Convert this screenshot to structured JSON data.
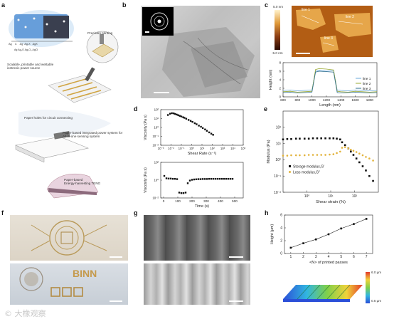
{
  "panel_labels": {
    "a": "a",
    "b": "b",
    "c": "c",
    "d": "d",
    "e": "e",
    "f": "f",
    "g": "g",
    "h": "h"
  },
  "panel_a": {
    "legend": [
      "Ag",
      "C",
      "Ag",
      "Ag-X",
      "AgX"
    ],
    "sublegend": "Ag   Ag₂O   Ag₂O₃   AgCl",
    "captions": {
      "precision_printing": "Precision printing",
      "scalable": "Scalable, printable and wettable\niontronic power source",
      "paper_holes": "Paper holes for circuit connecting",
      "integrated": "Paper-based integrated power system for\nAll-in-one sensing system",
      "teng": "Paper-based\nEnergy-harvesting TENG"
    }
  },
  "panel_c": {
    "colorbar_max": "5.0 nm",
    "colorbar_min": "-5.0 nm",
    "map_labels": [
      "line 1",
      "line 2",
      "line 3"
    ],
    "colors": {
      "line1": "#6aa7d8",
      "line2": "#9aa832",
      "line3": "#2e6e8e"
    }
  },
  "panel_h": {
    "colorbar_max": "6.0 µm",
    "colorbar_min": "0.5 µm"
  },
  "panel_f": {
    "binn_text": "BINN"
  },
  "watermark": "© 大橡观察",
  "chart_data": [
    {
      "panel": "c",
      "type": "line",
      "xlabel": "Length (nm)",
      "ylabel": "Height (nm)",
      "x_ticks": [
        "600",
        "800",
        "1000",
        "1200",
        "1400",
        "1600",
        "1800"
      ],
      "xlim": [
        600,
        1900
      ],
      "ylim": [
        0,
        8
      ],
      "y_ticks": [
        "0",
        "2",
        "4",
        "6",
        "8"
      ],
      "legend": [
        "line 1",
        "line 2",
        "line 3"
      ],
      "series": [
        {
          "name": "line 1",
          "x": [
            600,
            700,
            800,
            900,
            1000,
            1050,
            1100,
            1200,
            1300,
            1350,
            1400,
            1500,
            1600,
            1700,
            1800,
            1900
          ],
          "values": [
            1.5,
            1.6,
            1.4,
            1.5,
            1.6,
            6.0,
            6.2,
            6.0,
            6.1,
            1.6,
            1.5,
            1.4,
            1.6,
            1.5,
            1.4,
            1.5
          ]
        },
        {
          "name": "line 2",
          "x": [
            600,
            700,
            800,
            900,
            1000,
            1050,
            1100,
            1200,
            1300,
            1350,
            1400,
            1500,
            1600,
            1700,
            1800,
            1900
          ],
          "values": [
            1.2,
            1.3,
            1.1,
            1.2,
            1.3,
            6.4,
            6.6,
            6.5,
            6.3,
            1.3,
            1.2,
            1.1,
            1.3,
            1.2,
            1.1,
            1.2
          ]
        },
        {
          "name": "line 3",
          "x": [
            600,
            700,
            800,
            900,
            1000,
            1050,
            1100,
            1200,
            1300,
            1350,
            1400,
            1500,
            1600,
            1700,
            1800,
            1900
          ],
          "values": [
            1.0,
            1.1,
            0.9,
            1.0,
            1.1,
            5.8,
            6.0,
            5.9,
            5.8,
            1.0,
            0.9,
            1.0,
            1.1,
            1.0,
            0.9,
            1.0
          ]
        }
      ]
    },
    {
      "panel": "d-top",
      "type": "scatter",
      "xlabel": "Shear Rate (s⁻¹)",
      "ylabel": "Viscosity (Pa s)",
      "xscale": "log",
      "xlim": [
        0.001,
        100000
      ],
      "ylim": [
        0.01,
        100
      ],
      "x_ticks": [
        "10⁻³",
        "10⁻²",
        "10⁻¹",
        "10⁰",
        "10¹",
        "10²",
        "10³",
        "10⁴",
        "10⁵"
      ],
      "y_ticks": [
        "10⁻²",
        "10⁻¹",
        "10⁰",
        "10¹",
        "10²"
      ],
      "x": [
        0.005,
        0.008,
        0.012,
        0.018,
        0.025,
        0.035,
        0.05,
        0.07,
        0.1,
        0.15,
        0.2,
        0.3,
        0.5,
        0.8,
        1.2,
        2,
        3,
        5,
        8,
        12,
        20,
        30,
        50,
        80,
        120
      ],
      "values": [
        25,
        35,
        40,
        38,
        33,
        28,
        24,
        20,
        17,
        14,
        12,
        9.5,
        7,
        5.5,
        4.2,
        3,
        2.3,
        1.6,
        1.2,
        0.85,
        0.6,
        0.42,
        0.28,
        0.2,
        0.15
      ]
    },
    {
      "panel": "d-bottom",
      "type": "scatter",
      "xlabel": "Time (s)",
      "ylabel": "Viscosity (Pa s)",
      "xlim": [
        -20,
        560
      ],
      "ylim": [
        0.01,
        100
      ],
      "x_ticks": [
        "0",
        "100",
        "200",
        "300",
        "400",
        "500"
      ],
      "y_ticks": [
        "10⁻²",
        "10⁰",
        "10²"
      ],
      "x": [
        5,
        20,
        35,
        50,
        65,
        80,
        95,
        110,
        125,
        140,
        155,
        170,
        185,
        200,
        215,
        230,
        245,
        260,
        275,
        290,
        305,
        320,
        335,
        350,
        365,
        380,
        395,
        410,
        425,
        440,
        455,
        470,
        485
      ],
      "values": [
        3.0,
        1.6,
        1.5,
        1.5,
        1.4,
        1.4,
        1.3,
        0.04,
        0.035,
        0.035,
        0.04,
        0.45,
        0.9,
        1.1,
        1.2,
        1.25,
        1.3,
        1.3,
        1.35,
        1.35,
        1.35,
        1.4,
        1.4,
        1.4,
        1.4,
        1.4,
        1.4,
        1.4,
        1.4,
        1.4,
        1.4,
        1.4,
        1.4
      ]
    },
    {
      "panel": "e",
      "type": "scatter",
      "xlabel": "Shear strain (%)",
      "ylabel": "Modulus (Pa)",
      "xscale": "log",
      "yscale": "log",
      "xlim": [
        0.1,
        1000
      ],
      "ylim": [
        0.01,
        1000
      ],
      "x_ticks": [
        "10⁰",
        "10¹",
        "10²"
      ],
      "y_ticks": [
        "10⁻²",
        "10⁻¹",
        "10⁰",
        "10¹",
        "10²"
      ],
      "legend": [
        "Storage modulus,G'",
        "Loss modulus,G''"
      ],
      "series": [
        {
          "name": "Storage modulus,G'",
          "color": "#111111",
          "x": [
            0.1,
            0.15,
            0.22,
            0.35,
            0.5,
            0.8,
            1.2,
            1.8,
            2.7,
            4,
            6,
            9,
            13,
            18,
            25,
            30,
            40,
            55,
            70,
            90,
            120,
            160,
            220,
            300,
            420,
            600
          ],
          "values": [
            18,
            19,
            19,
            20,
            20,
            20,
            20,
            21,
            21,
            21,
            21,
            21,
            21,
            20,
            18,
            12,
            8,
            5,
            3.2,
            2,
            1.2,
            0.7,
            0.4,
            0.22,
            0.1,
            0.05
          ]
        },
        {
          "name": "Loss modulus,G''",
          "color": "#e2b33c",
          "x": [
            0.1,
            0.15,
            0.22,
            0.35,
            0.5,
            0.8,
            1.2,
            1.8,
            2.7,
            4,
            6,
            9,
            13,
            18,
            25,
            30,
            40,
            55,
            70,
            90,
            120,
            160,
            220,
            300,
            420,
            600
          ],
          "values": [
            1.8,
            1.8,
            1.9,
            1.9,
            1.9,
            1.9,
            2.0,
            2.0,
            2.0,
            2.0,
            2.0,
            2.1,
            2.2,
            2.6,
            3.2,
            5.5,
            6,
            5,
            4.2,
            3.6,
            3,
            2.4,
            1.9,
            1.5,
            1.2,
            0.9
          ]
        }
      ]
    },
    {
      "panel": "h",
      "type": "line",
      "xlabel": "<N> of printed passes",
      "ylabel": "Height (µm)",
      "xlim": [
        0.5,
        7.5
      ],
      "ylim": [
        0,
        6
      ],
      "x_ticks": [
        "1",
        "2",
        "3",
        "4",
        "5",
        "6",
        "7"
      ],
      "y_ticks": [
        "0",
        "2",
        "4",
        "6"
      ],
      "x": [
        1,
        2,
        3,
        4,
        5,
        6,
        7
      ],
      "values": [
        0.9,
        1.6,
        2.2,
        3.0,
        3.9,
        4.6,
        5.4
      ]
    }
  ]
}
